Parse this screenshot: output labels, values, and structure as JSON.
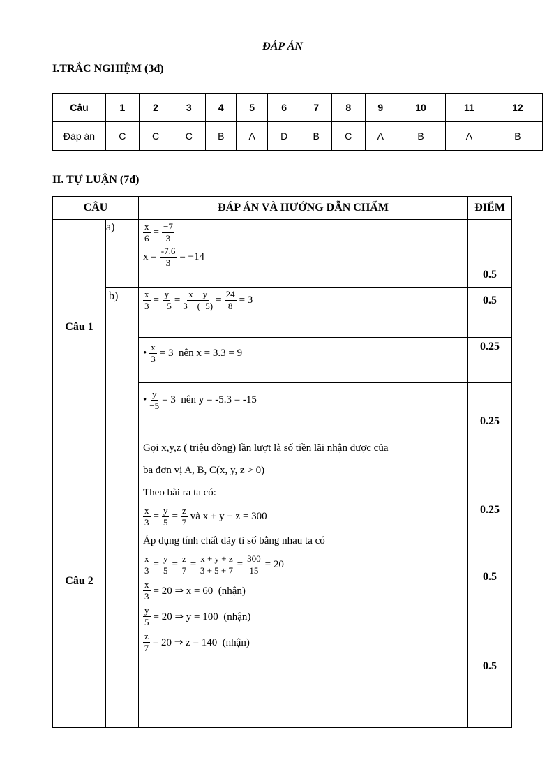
{
  "title": "ĐÁP ÁN",
  "quiz": {
    "heading": "I.TRẮC NGHIỆM (3đ)",
    "rows": [
      [
        "Câu",
        "1",
        "2",
        "3",
        "4",
        "5",
        "6",
        "7",
        "8",
        "9",
        "10",
        "11",
        "12"
      ],
      [
        "Đáp án",
        "C",
        "C",
        "C",
        "B",
        "A",
        "D",
        "B",
        "C",
        "A",
        "B",
        "A",
        "B"
      ]
    ]
  },
  "essay": {
    "heading": "II. TỰ LUẬN (7đ)",
    "header": [
      "CÂU",
      "ĐÁP ÁN VÀ HƯỚNG DẪN CHẤM",
      "ĐIỂM"
    ],
    "q1": {
      "label": "Câu 1",
      "parts": [
        {
          "label": "a)",
          "lines": [
            [
              {
                "n": "x",
                "d": "6"
              },
              "=",
              {
                "n": "−7",
                "d": "3"
              }
            ],
            [
              "x =",
              {
                "n": "-7.6",
                "d": "3"
              },
              "= −14"
            ]
          ],
          "score": "0.5"
        },
        {
          "label": "b)",
          "lines": [
            [
              {
                "n": "x",
                "d": "3"
              },
              "=",
              {
                "n": "y",
                "d": "−5"
              },
              "=",
              {
                "n": "x − y",
                "d": "3 − (−5)"
              },
              "=",
              {
                "n": "24",
                "d": "8"
              },
              "= 3"
            ]
          ],
          "score": "0.5"
        },
        {
          "lines": [
            [
              "•",
              {
                "n": "x",
                "d": "3"
              },
              "= 3  nên x = 3.3 = 9"
            ]
          ],
          "score": "0.25"
        },
        {
          "lines": [
            [
              "•",
              {
                "n": "y",
                "d": "−5"
              },
              "= 3  nên y = -5.3 = -15"
            ]
          ],
          "score": "0.25"
        }
      ]
    },
    "q2": {
      "label": "Câu 2",
      "lines": [
        "Gọi x,y,z ( triệu đồng) lần lượt là số tiền lãi nhận được của",
        "ba đơn vị A, B, C(x, y, z > 0)",
        "Theo bài ra ta có:",
        [
          {
            "n": "x",
            "d": "3"
          },
          "=",
          {
            "n": "y",
            "d": "5"
          },
          "=",
          {
            "n": "z",
            "d": "7"
          },
          "và x + y + z = 300"
        ],
        "Áp dụng tính chất dãy tỉ số bằng nhau ta có",
        [
          {
            "n": "x",
            "d": "3"
          },
          "=",
          {
            "n": "y",
            "d": "5"
          },
          "=",
          {
            "n": "z",
            "d": "7"
          },
          "=",
          {
            "n": "x + y + z",
            "d": "3 + 5 + 7"
          },
          "=",
          {
            "n": "300",
            "d": "15"
          },
          "= 20"
        ],
        [
          {
            "n": "x",
            "d": "3"
          },
          "= 20 ⇒ x = 60  (nhận)"
        ],
        [
          {
            "n": "y",
            "d": "5"
          },
          "= 20 ⇒ y = 100  (nhận)"
        ],
        [
          {
            "n": "z",
            "d": "7"
          },
          "= 20 ⇒ z = 140  (nhận)"
        ]
      ],
      "scores": [
        "0.25",
        "0.5",
        "0.5"
      ]
    }
  }
}
